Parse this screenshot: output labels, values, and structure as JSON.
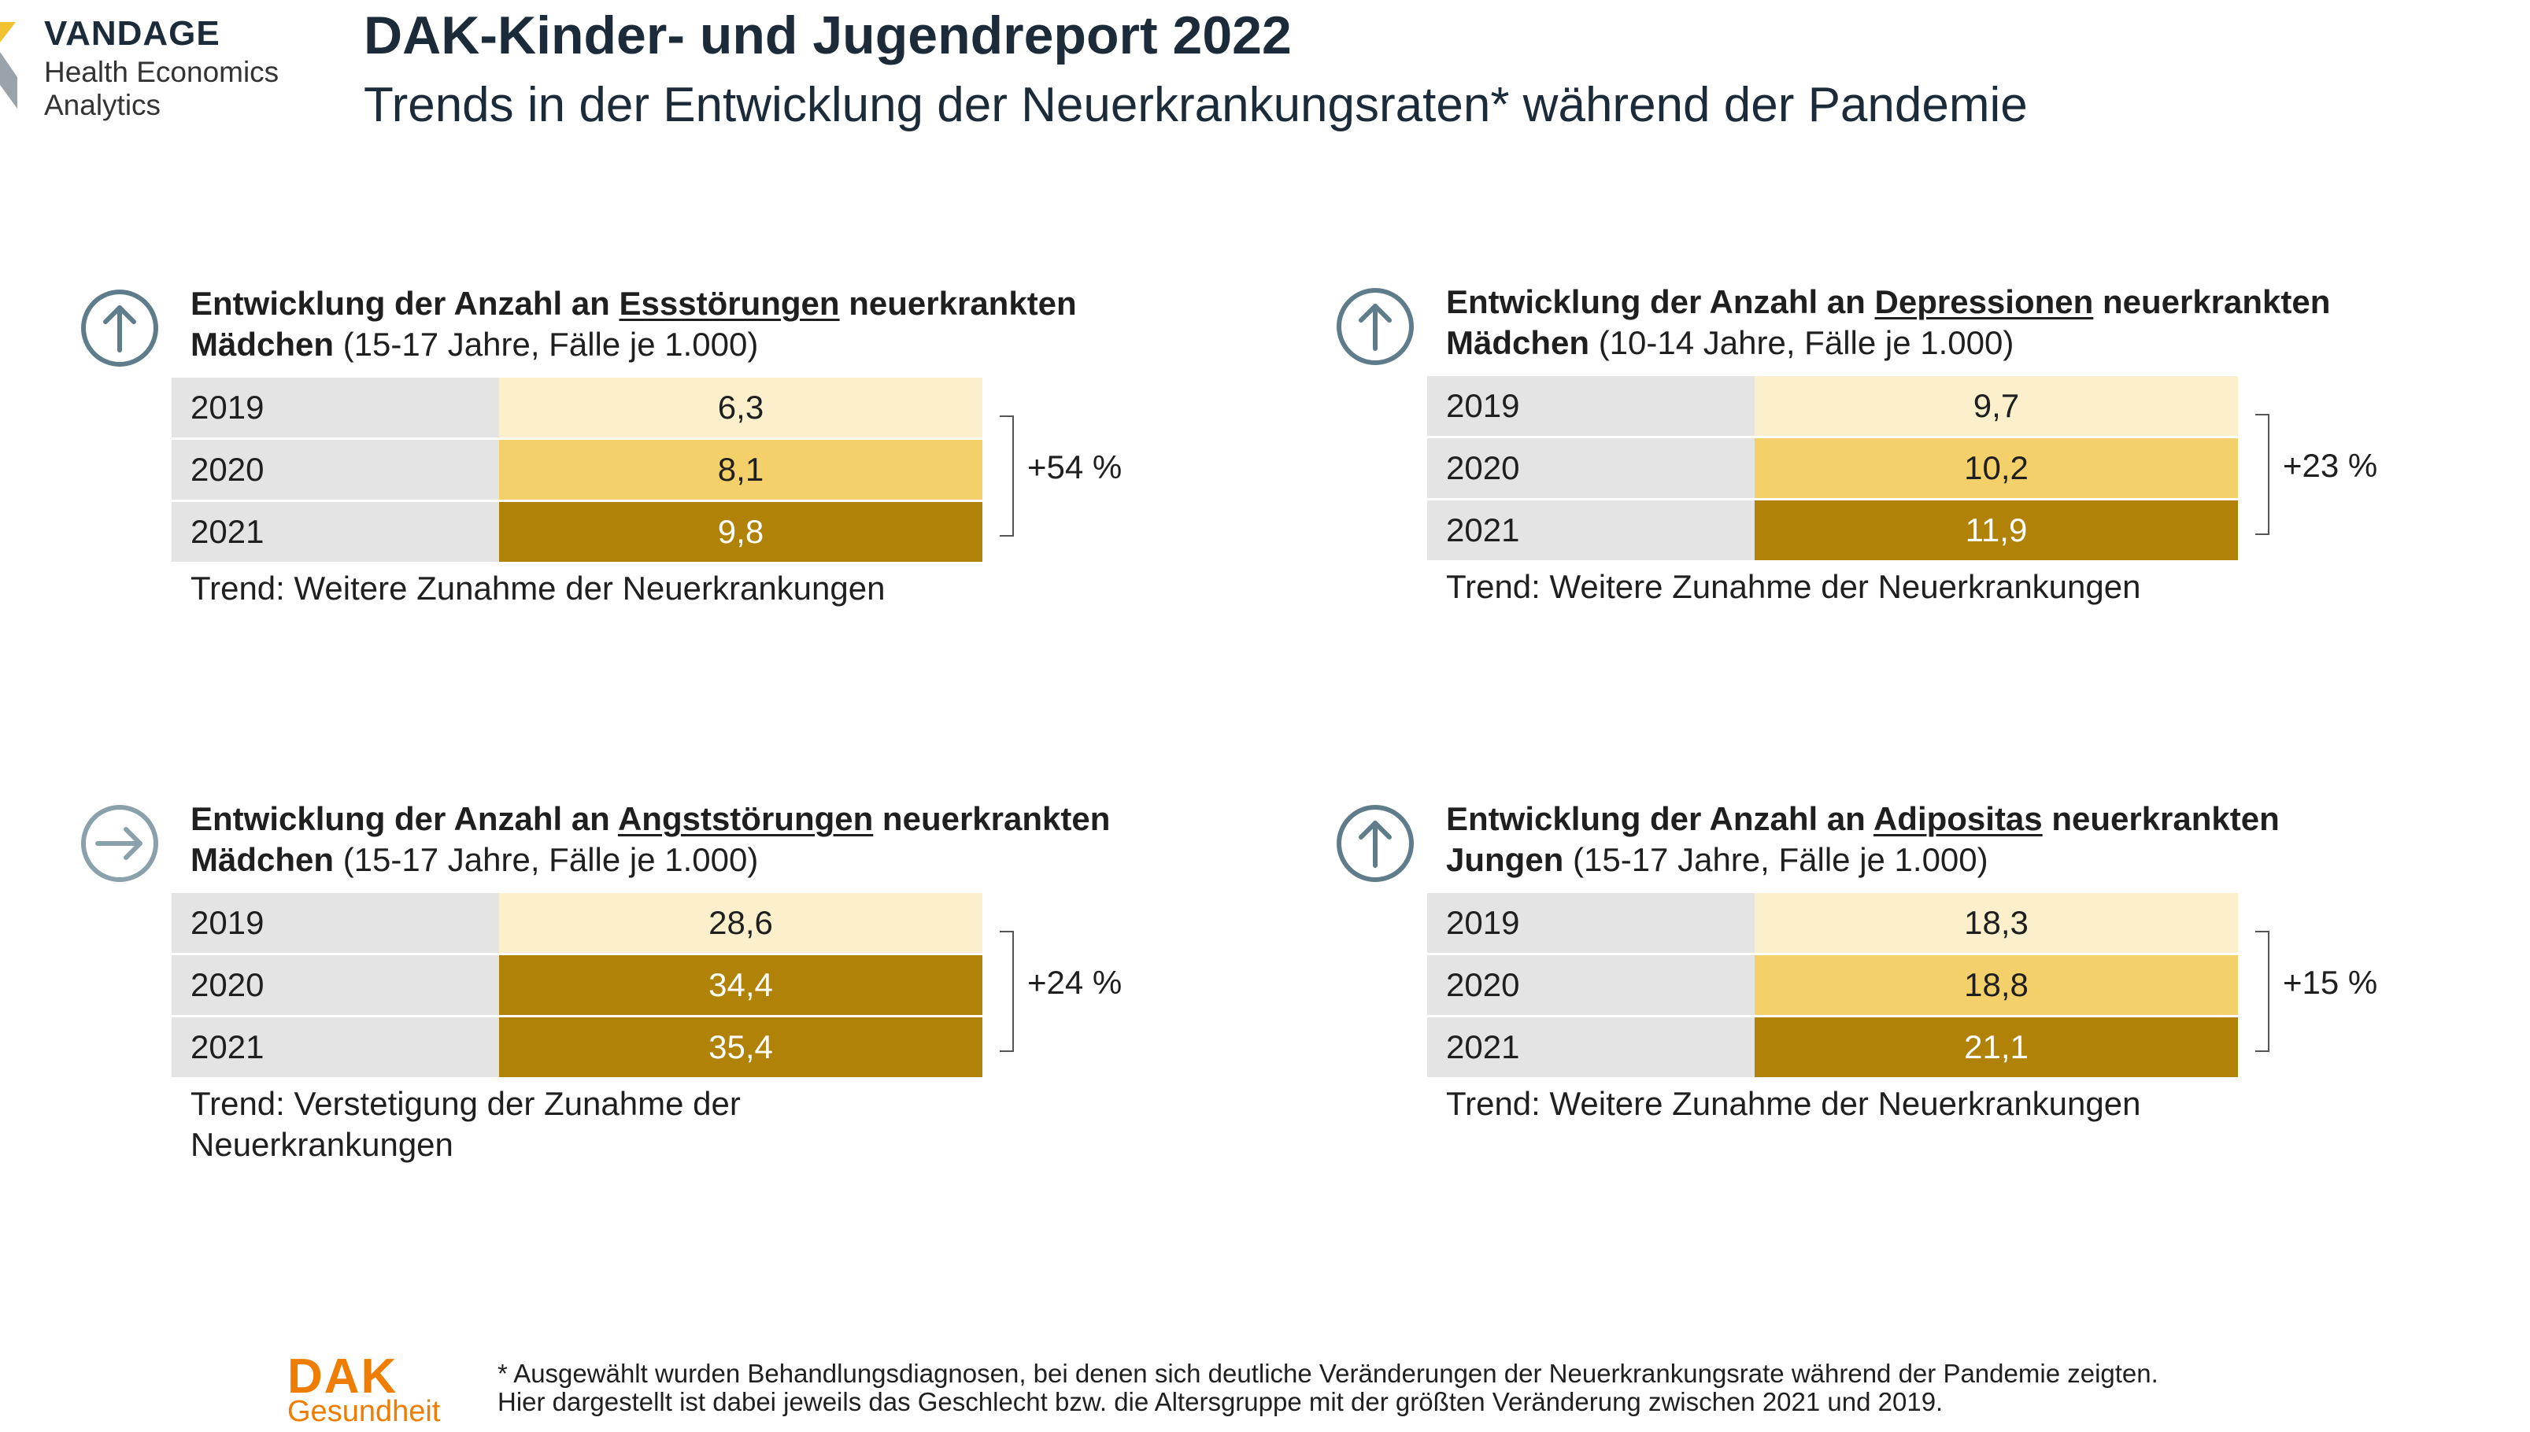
{
  "branding": {
    "name": "VANDAGE",
    "sub_line1": "Health Economics",
    "sub_line2": "Analytics",
    "footer_logo_main": "DAK",
    "footer_logo_sub": "Gesundheit"
  },
  "header": {
    "title": "DAK-Kinder- und Jugendreport 2022",
    "subtitle": "Trends in der Entwicklung der Neuerkrankungsraten* während der Pandemie"
  },
  "panels": [
    {
      "icon": "arrow-up-icon",
      "prefix": "Entwicklung der Anzahl an ",
      "disease": "Essstörungen",
      "suffix": " neuerkrankten",
      "group": "Mädchen",
      "detail": " (15-17 Jahre, Fälle je 1.000)",
      "rows": [
        {
          "year": "2019",
          "value": "6,3"
        },
        {
          "year": "2020",
          "value": "8,1"
        },
        {
          "year": "2021",
          "value": "9,8"
        }
      ],
      "change": "+54 %",
      "trend_line1": "Trend: Weitere Zunahme der Neuerkrankungen",
      "trend_line2": ""
    },
    {
      "icon": "arrow-up-icon",
      "prefix": "Entwicklung der Anzahl an ",
      "disease": "Depressionen",
      "suffix": " neuerkrankten",
      "group": "Mädchen",
      "detail": " (10-14 Jahre, Fälle je 1.000)",
      "rows": [
        {
          "year": "2019",
          "value": "9,7"
        },
        {
          "year": "2020",
          "value": "10,2"
        },
        {
          "year": "2021",
          "value": "11,9"
        }
      ],
      "change": "+23 %",
      "trend_line1": "Trend: Weitere Zunahme der Neuerkrankungen",
      "trend_line2": ""
    },
    {
      "icon": "arrow-right-icon",
      "prefix": "Entwicklung der Anzahl an ",
      "disease": "Angststörungen",
      "suffix": " neuerkrankten",
      "group": "Mädchen",
      "detail": " (15-17 Jahre, Fälle je 1.000)",
      "rows": [
        {
          "year": "2019",
          "value": "28,6"
        },
        {
          "year": "2020",
          "value": "34,4"
        },
        {
          "year": "2021",
          "value": "35,4"
        }
      ],
      "change": "+24 %",
      "trend_line1": "Trend: Verstetigung der Zunahme der",
      "trend_line2": "Neuerkrankungen"
    },
    {
      "icon": "arrow-up-icon",
      "prefix": "Entwicklung der Anzahl an ",
      "disease": "Adipositas",
      "suffix": " neuerkrankten",
      "group": "Jungen",
      "detail": " (15-17 Jahre, Fälle je 1.000)",
      "rows": [
        {
          "year": "2019",
          "value": "18,3"
        },
        {
          "year": "2020",
          "value": "18,8"
        },
        {
          "year": "2021",
          "value": "21,1"
        }
      ],
      "change": "+15 %",
      "trend_line1": "Trend: Weitere Zunahme der Neuerkrankungen",
      "trend_line2": ""
    }
  ],
  "footnote": {
    "line1": "* Ausgewählt wurden Behandlungsdiagnosen, bei denen sich deutliche Veränderungen der Neuerkrankungsrate während der Pandemie zeigten.",
    "line2": "Hier dargestellt ist dabei jeweils das Geschlecht bzw. die Altersgruppe mit der größten Veränderung zwischen 2021 und 2019."
  },
  "colors": {
    "light": "#fbefcc",
    "mid": "#f4d06a",
    "dark": "#b08207",
    "year_bg": "#e4e4e4",
    "icon": "#5f7c8a",
    "accent_orange": "#ef7d00"
  }
}
